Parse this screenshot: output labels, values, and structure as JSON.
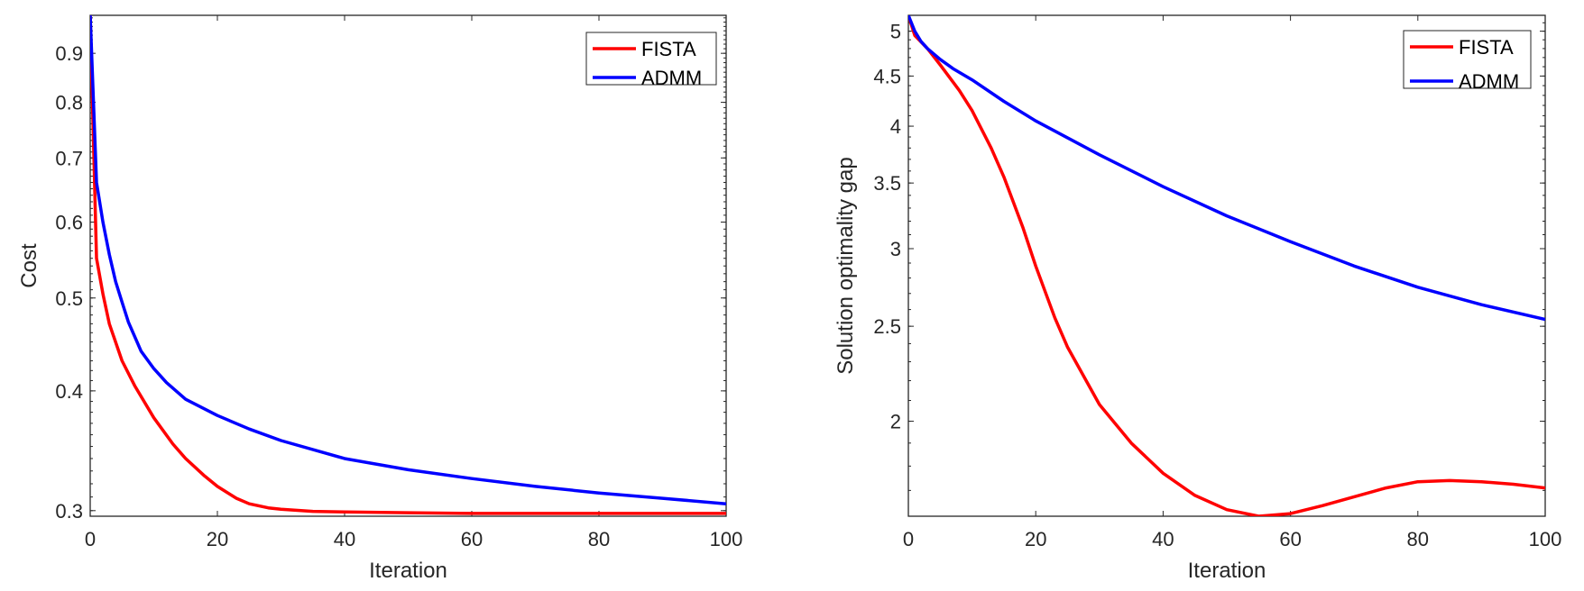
{
  "chart_data": [
    {
      "type": "line",
      "title": "",
      "xlabel": "Iteration",
      "ylabel": "Cost",
      "yscale": "log",
      "xlim": [
        0,
        100
      ],
      "ylim": [
        0.296,
        0.986
      ],
      "xticks": [
        0,
        20,
        40,
        60,
        80,
        100
      ],
      "xtick_labels": [
        "0",
        "20",
        "40",
        "60",
        "80",
        "100"
      ],
      "yticks": [
        0.3,
        0.4,
        0.5,
        0.6,
        0.7,
        0.8,
        0.9
      ],
      "ytick_labels": [
        "0.3",
        "0.4",
        "0.5",
        "0.6",
        "0.7",
        "0.8",
        "0.9"
      ],
      "legend_position": "top-right",
      "series": [
        {
          "name": "FISTA",
          "color": "#ff0000",
          "x": [
            0,
            1,
            2,
            3,
            5,
            7,
            10,
            13,
            15,
            18,
            20,
            23,
            25,
            28,
            30,
            35,
            40,
            50,
            60,
            80,
            100
          ],
          "y": [
            0.986,
            0.55,
            0.505,
            0.47,
            0.43,
            0.405,
            0.375,
            0.352,
            0.34,
            0.326,
            0.318,
            0.309,
            0.305,
            0.302,
            0.301,
            0.2995,
            0.299,
            0.2985,
            0.298,
            0.298,
            0.298
          ]
        },
        {
          "name": "ADMM",
          "color": "#0000ff",
          "x": [
            0,
            1,
            2,
            3,
            4,
            5,
            6,
            8,
            10,
            12,
            15,
            20,
            25,
            30,
            40,
            50,
            60,
            70,
            80,
            90,
            100
          ],
          "y": [
            0.986,
            0.66,
            0.6,
            0.555,
            0.52,
            0.495,
            0.472,
            0.44,
            0.422,
            0.408,
            0.392,
            0.377,
            0.365,
            0.355,
            0.34,
            0.331,
            0.324,
            0.318,
            0.313,
            0.309,
            0.305
          ]
        }
      ]
    },
    {
      "type": "line",
      "title": "",
      "xlabel": "Iteration",
      "ylabel": "Solution optimality gap",
      "yscale": "log",
      "xlim": [
        0,
        100
      ],
      "ylim": [
        1.6,
        5.19
      ],
      "xticks": [
        0,
        20,
        40,
        60,
        80,
        100
      ],
      "xtick_labels": [
        "0",
        "20",
        "40",
        "60",
        "80",
        "100"
      ],
      "yticks": [
        2,
        2.5,
        3,
        3.5,
        4,
        4.5,
        5
      ],
      "ytick_labels": [
        "2",
        "2.5",
        "3",
        "3.5",
        "4",
        "4.5",
        "5"
      ],
      "legend_position": "top-right",
      "series": [
        {
          "name": "FISTA",
          "color": "#ff0000",
          "x": [
            0,
            1,
            3,
            5,
            8,
            10,
            13,
            15,
            18,
            20,
            23,
            25,
            30,
            35,
            40,
            45,
            50,
            55,
            60,
            65,
            70,
            75,
            80,
            85,
            90,
            95,
            100
          ],
          "y": [
            5.19,
            4.95,
            4.8,
            4.62,
            4.35,
            4.15,
            3.8,
            3.55,
            3.15,
            2.88,
            2.55,
            2.38,
            2.08,
            1.9,
            1.77,
            1.68,
            1.625,
            1.6,
            1.61,
            1.64,
            1.675,
            1.71,
            1.735,
            1.74,
            1.735,
            1.725,
            1.71
          ]
        },
        {
          "name": "ADMM",
          "color": "#0000ff",
          "x": [
            0,
            1,
            2,
            3,
            5,
            7,
            10,
            15,
            20,
            30,
            40,
            50,
            60,
            70,
            80,
            90,
            100
          ],
          "y": [
            5.19,
            5.0,
            4.88,
            4.8,
            4.68,
            4.58,
            4.46,
            4.24,
            4.05,
            3.74,
            3.47,
            3.24,
            3.05,
            2.88,
            2.74,
            2.63,
            2.54
          ]
        }
      ]
    }
  ]
}
